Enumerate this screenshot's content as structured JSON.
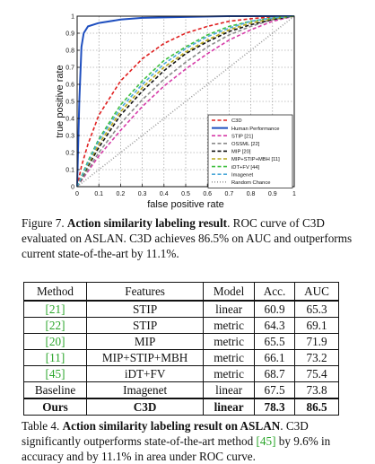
{
  "chart_data": {
    "type": "line",
    "xlabel": "false positive rate",
    "ylabel": "true positive rate",
    "xlim": [
      0,
      1
    ],
    "ylim": [
      0,
      1
    ],
    "x_ticks": [
      "0",
      "0.1",
      "0.2",
      "0.3",
      "0.4",
      "0.5",
      "0.6",
      "0.7",
      "0.8",
      "0.9",
      "1"
    ],
    "y_ticks": [
      "0",
      "0.1",
      "0.2",
      "0.3",
      "0.4",
      "0.5",
      "0.6",
      "0.7",
      "0.8",
      "0.9",
      "1"
    ],
    "grid": true,
    "legend_position": "bottom-right",
    "series": [
      {
        "name": "C3D",
        "color": "#e02020",
        "dash": "dashed",
        "x": [
          0,
          0.02,
          0.05,
          0.1,
          0.2,
          0.3,
          0.4,
          0.5,
          0.6,
          0.7,
          0.8,
          0.9,
          1
        ],
        "y": [
          0,
          0.12,
          0.25,
          0.42,
          0.62,
          0.75,
          0.84,
          0.9,
          0.94,
          0.97,
          0.985,
          0.995,
          1
        ]
      },
      {
        "name": "Human Performance",
        "color": "#1f4fbf",
        "dash": "solid",
        "x": [
          0,
          0.01,
          0.02,
          0.03,
          0.05,
          0.1,
          0.2,
          0.3,
          0.5,
          0.7,
          1
        ],
        "y": [
          0,
          0.5,
          0.82,
          0.9,
          0.94,
          0.96,
          0.98,
          0.99,
          0.995,
          1,
          1
        ]
      },
      {
        "name": "STIP [21]",
        "color": "#d63ca8",
        "dash": "dashed",
        "x": [
          0,
          0.05,
          0.1,
          0.2,
          0.3,
          0.4,
          0.5,
          0.6,
          0.7,
          0.8,
          0.9,
          1
        ],
        "y": [
          0,
          0.09,
          0.18,
          0.33,
          0.47,
          0.59,
          0.69,
          0.78,
          0.86,
          0.92,
          0.97,
          1
        ]
      },
      {
        "name": "OSSML [22]",
        "color": "#8a8a8a",
        "dash": "dashed",
        "x": [
          0,
          0.05,
          0.1,
          0.2,
          0.3,
          0.4,
          0.5,
          0.6,
          0.7,
          0.8,
          0.9,
          1
        ],
        "y": [
          0,
          0.1,
          0.2,
          0.37,
          0.51,
          0.63,
          0.73,
          0.82,
          0.89,
          0.94,
          0.98,
          1
        ]
      },
      {
        "name": "MIP [20]",
        "color": "#111111",
        "dash": "dashed",
        "x": [
          0,
          0.05,
          0.1,
          0.2,
          0.3,
          0.4,
          0.5,
          0.6,
          0.7,
          0.8,
          0.9,
          1
        ],
        "y": [
          0,
          0.12,
          0.23,
          0.42,
          0.56,
          0.68,
          0.78,
          0.85,
          0.91,
          0.95,
          0.98,
          1
        ]
      },
      {
        "name": "MIP+STIP+MBH [11]",
        "color": "#b7a81a",
        "dash": "dashed",
        "x": [
          0,
          0.05,
          0.1,
          0.2,
          0.3,
          0.4,
          0.5,
          0.6,
          0.7,
          0.8,
          0.9,
          1
        ],
        "y": [
          0,
          0.13,
          0.25,
          0.44,
          0.58,
          0.7,
          0.79,
          0.86,
          0.92,
          0.96,
          0.985,
          1
        ]
      },
      {
        "name": "iDT+FV [44]",
        "color": "#3fbf3f",
        "dash": "dashed",
        "x": [
          0,
          0.05,
          0.1,
          0.2,
          0.3,
          0.4,
          0.5,
          0.6,
          0.7,
          0.8,
          0.9,
          1
        ],
        "y": [
          0,
          0.15,
          0.28,
          0.48,
          0.62,
          0.74,
          0.82,
          0.89,
          0.94,
          0.97,
          0.99,
          1
        ]
      },
      {
        "name": "Imagenet",
        "color": "#4aa8d8",
        "dash": "dashed",
        "x": [
          0,
          0.05,
          0.1,
          0.2,
          0.3,
          0.4,
          0.5,
          0.6,
          0.7,
          0.8,
          0.9,
          1
        ],
        "y": [
          0,
          0.14,
          0.27,
          0.46,
          0.6,
          0.72,
          0.81,
          0.88,
          0.93,
          0.97,
          0.99,
          1
        ]
      },
      {
        "name": "Random Chance",
        "color": "#9a9a9a",
        "dash": "dotted",
        "x": [
          0,
          1
        ],
        "y": [
          0,
          1
        ]
      }
    ]
  },
  "figure": {
    "label": "Figure 7.",
    "title": "Action similarity labeling result",
    "text": ". ROC curve of C3D evaluated on ASLAN. C3D achieves 86.5% on AUC and outperforms current state-of-the-art by 11.1%."
  },
  "table": {
    "headers": [
      "Method",
      "Features",
      "Model",
      "Acc.",
      "AUC"
    ],
    "rows": [
      {
        "method": "[21]",
        "ref": true,
        "features": "STIP",
        "model": "linear",
        "acc": "60.9",
        "auc": "65.3"
      },
      {
        "method": "[22]",
        "ref": true,
        "features": "STIP",
        "model": "metric",
        "acc": "64.3",
        "auc": "69.1"
      },
      {
        "method": "[20]",
        "ref": true,
        "features": "MIP",
        "model": "metric",
        "acc": "65.5",
        "auc": "71.9"
      },
      {
        "method": "[11]",
        "ref": true,
        "features": "MIP+STIP+MBH",
        "model": "metric",
        "acc": "66.1",
        "auc": "73.2"
      },
      {
        "method": "[45]",
        "ref": true,
        "features": "iDT+FV",
        "model": "metric",
        "acc": "68.7",
        "auc": "75.4"
      },
      {
        "method": "Baseline",
        "ref": false,
        "features": "Imagenet",
        "model": "linear",
        "acc": "67.5",
        "auc": "73.8"
      }
    ],
    "ours": {
      "method": "Ours",
      "features": "C3D",
      "model": "linear",
      "acc": "78.3",
      "auc": "86.5"
    }
  },
  "table_caption": {
    "label": "Table 4.",
    "title": "Action similarity labeling result on ASLAN",
    "text_a": ". C3D significantly outperforms state-of-the-art method ",
    "ref": "[45]",
    "text_b": " by 9.6% in accuracy and by 11.1% in area under ROC curve."
  }
}
